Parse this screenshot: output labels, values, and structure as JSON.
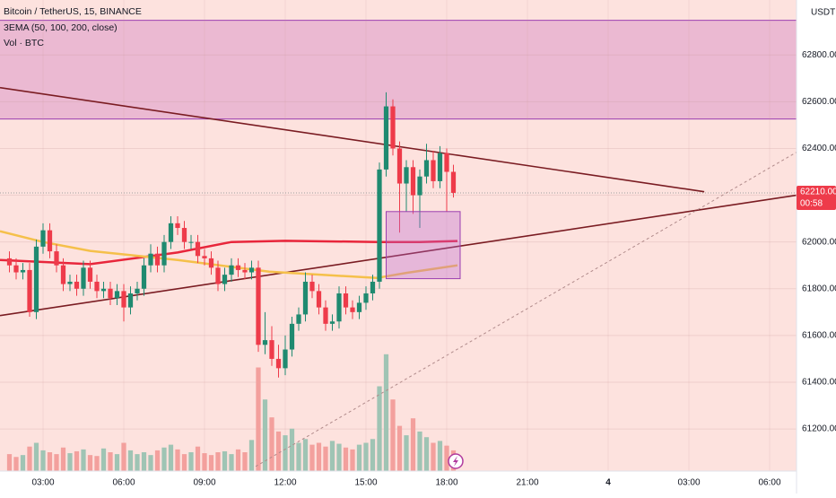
{
  "chart_data": {
    "type": "candlestick",
    "title": "Bitcoin / TetherUS, 15, BINANCE",
    "indicators": [
      "3EMA (50, 100, 200, close)",
      "Vol · BTC"
    ],
    "currency": "USDT",
    "x": [
      1.75,
      2,
      2.25,
      2.5,
      2.75,
      3,
      3.25,
      3.5,
      3.75,
      4,
      4.25,
      4.5,
      4.75,
      5,
      5.25,
      5.5,
      5.75,
      6,
      6.25,
      6.5,
      6.75,
      7,
      7.25,
      7.5,
      7.75,
      8,
      8.25,
      8.5,
      8.75,
      9,
      9.25,
      9.5,
      9.75,
      10,
      10.25,
      10.5,
      10.75,
      11,
      11.25,
      11.5,
      11.75,
      12,
      12.25,
      12.5,
      12.75,
      13,
      13.25,
      13.5,
      13.75,
      14,
      14.25,
      14.5,
      14.75,
      15,
      15.25,
      15.5,
      15.75,
      16,
      16.25,
      16.5,
      16.75,
      17,
      17.25,
      17.5,
      17.75,
      18,
      18.25
    ],
    "open": [
      61930,
      61900,
      61870,
      61880,
      61700,
      61980,
      62050,
      61960,
      61900,
      61820,
      61830,
      61800,
      61890,
      61830,
      61790,
      61800,
      61760,
      61790,
      61720,
      61780,
      61800,
      61900,
      61950,
      61900,
      62000,
      62080,
      62060,
      62000,
      62000,
      61940,
      61930,
      61890,
      61820,
      61860,
      61900,
      61880,
      61870,
      61890,
      61560,
      61580,
      61500,
      61460,
      61540,
      61650,
      61690,
      61830,
      61790,
      61720,
      61650,
      61660,
      61780,
      61720,
      61700,
      61740,
      61780,
      61830,
      62310,
      62580,
      62400,
      62250,
      62320,
      62200,
      62280,
      62350,
      62260,
      62380,
      62300
    ],
    "high": [
      61960,
      61930,
      61910,
      61910,
      62010,
      62080,
      62080,
      61990,
      61930,
      61860,
      61860,
      61920,
      61920,
      61860,
      61830,
      61830,
      61820,
      61820,
      61810,
      61830,
      61930,
      61990,
      61980,
      62030,
      62110,
      62110,
      62090,
      62030,
      62030,
      61970,
      61960,
      61920,
      61890,
      61930,
      61930,
      61910,
      61920,
      61920,
      61700,
      61640,
      61560,
      61600,
      61680,
      61720,
      61870,
      61860,
      61820,
      61750,
      61690,
      61810,
      61810,
      61750,
      61770,
      61810,
      61860,
      62340,
      62640,
      62610,
      62430,
      62350,
      62350,
      62310,
      62420,
      62390,
      62410,
      62400,
      62330
    ],
    "low": [
      61870,
      61840,
      61840,
      61680,
      61670,
      61950,
      61930,
      61870,
      61790,
      61790,
      61770,
      61770,
      61800,
      61760,
      61760,
      61730,
      61730,
      61660,
      61690,
      61750,
      61770,
      61870,
      61870,
      61870,
      61970,
      62030,
      61970,
      61970,
      61910,
      61900,
      61860,
      61790,
      61790,
      61830,
      61850,
      61840,
      61840,
      61530,
      61520,
      61470,
      61420,
      61430,
      61510,
      61620,
      61660,
      61760,
      61690,
      61620,
      61620,
      61630,
      61690,
      61670,
      61670,
      61710,
      61750,
      61800,
      62280,
      62370,
      62040,
      62130,
      62120,
      62060,
      62250,
      62230,
      62230,
      62130,
      62190
    ],
    "close": [
      61900,
      61870,
      61880,
      61700,
      61980,
      62050,
      61960,
      61900,
      61820,
      61830,
      61800,
      61890,
      61830,
      61790,
      61800,
      61760,
      61790,
      61720,
      61780,
      61800,
      61900,
      61950,
      61900,
      62000,
      62080,
      62060,
      62000,
      62000,
      61940,
      61930,
      61890,
      61820,
      61860,
      61900,
      61880,
      61870,
      61890,
      61560,
      61580,
      61500,
      61460,
      61540,
      61650,
      61690,
      61830,
      61790,
      61720,
      61650,
      61660,
      61780,
      61720,
      61700,
      61740,
      61780,
      61830,
      62310,
      62580,
      62400,
      62250,
      62320,
      62200,
      62280,
      62350,
      62260,
      62380,
      62300,
      62210
    ],
    "volume": [
      180,
      150,
      170,
      260,
      300,
      220,
      200,
      180,
      250,
      190,
      210,
      230,
      170,
      160,
      240,
      200,
      180,
      300,
      220,
      180,
      200,
      170,
      220,
      250,
      280,
      230,
      180,
      200,
      260,
      190,
      170,
      200,
      210,
      180,
      230,
      200,
      330,
      1100,
      760,
      570,
      420,
      380,
      450,
      300,
      340,
      280,
      300,
      260,
      320,
      290,
      250,
      230,
      280,
      300,
      340,
      900,
      1240,
      760,
      480,
      380,
      560,
      420,
      360,
      300,
      320,
      270,
      220
    ],
    "volume_ylim": [
      0,
      5000
    ],
    "up_color": "#1f8a70",
    "down_color": "#ee3b4a",
    "volume_up_color": "#9fc4b4",
    "volume_down_color": "#f3a09d",
    "background": "#fde2de",
    "xlim": [
      1.4,
      31
    ],
    "ylim": [
      61020,
      63035
    ],
    "xticks": [
      {
        "value": 3,
        "label": "03:00"
      },
      {
        "value": 6,
        "label": "06:00"
      },
      {
        "value": 9,
        "label": "09:00"
      },
      {
        "value": 12,
        "label": "12:00"
      },
      {
        "value": 15,
        "label": "15:00"
      },
      {
        "value": 18,
        "label": "18:00"
      },
      {
        "value": 21,
        "label": "21:00"
      },
      {
        "value": 24,
        "label": "4"
      },
      {
        "value": 27,
        "label": "03:00"
      },
      {
        "value": 30,
        "label": "06:00"
      }
    ],
    "yticks": [
      {
        "value": 61200,
        "label": "61200.00"
      },
      {
        "value": 61400,
        "label": "61400.00"
      },
      {
        "value": 61600,
        "label": "61600.00"
      },
      {
        "value": 61800,
        "label": "61800.00"
      },
      {
        "value": 62000,
        "label": "62000.00"
      },
      {
        "value": 62200,
        "label": "62200.00"
      },
      {
        "value": 62400,
        "label": "62400.00"
      },
      {
        "value": 62600,
        "label": "62600.00"
      },
      {
        "value": 62800,
        "label": "62800.00"
      }
    ],
    "last_price": {
      "value": 62210,
      "label": "62210.00"
    },
    "countdown": "00:58",
    "grid": true,
    "ema_lines": [
      {
        "color": "#e8263b",
        "x": [
          1.4,
          4.75,
          8,
          10,
          12,
          15.5,
          17,
          18.4
        ],
        "values": [
          61923,
          61905,
          61955,
          62000,
          62005,
          62000,
          62000,
          62004
        ]
      },
      {
        "color": "#f5c04a",
        "x": [
          1.4,
          3,
          4.75,
          8,
          11.4,
          15.4,
          16.5,
          18.4
        ],
        "values": [
          62046,
          62000,
          61962,
          61923,
          61873,
          61846,
          61868,
          61900
        ]
      }
    ],
    "trend_lines": [
      {
        "color": "#7a1c22",
        "x": [
          1.4,
          27.57
        ],
        "y": [
          62660,
          62215
        ],
        "dashed": false
      },
      {
        "color": "#7a1c22",
        "x": [
          1.4,
          31
        ],
        "y": [
          61685,
          62200
        ],
        "dashed": false
      },
      {
        "color": "#b08a8a",
        "x": [
          10.9,
          31
        ],
        "y": [
          61040,
          62384
        ],
        "dashed": true
      }
    ],
    "zone": {
      "y": [
        62526,
        62948
      ],
      "fill": "#ebb9d2",
      "stroke": "#9b3fb0"
    },
    "box": {
      "x": [
        15.75,
        18.5
      ],
      "y": [
        61843,
        62130
      ],
      "fill": "rgba(186,104,210,0.35)",
      "stroke": "#9b3fb0"
    }
  }
}
